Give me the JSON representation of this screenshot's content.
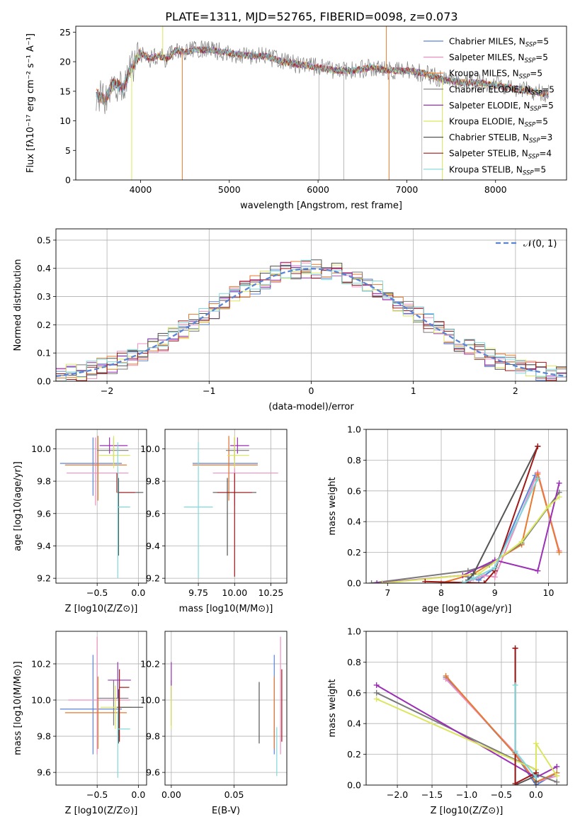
{
  "figure": {
    "title": "PLATE=1311, MJD=52765, FIBERID=0098, z=0.073"
  },
  "colors": {
    "Chabrier MILES": "#5b84d6",
    "Salpeter MILES": "#ec8fc0",
    "Kroupa MILES": "#e87a2e",
    "Chabrier ELODIE": "#7a7a7a",
    "Salpeter ELODIE": "#9b2fb5",
    "Kroupa ELODIE": "#dbe65e",
    "Chabrier STELIB": "#555555",
    "Salpeter STELIB": "#a01818",
    "Kroupa STELIB": "#7fd9db",
    "grid": "#b0b0b0",
    "gauss": "#5b84d6"
  },
  "chart_data": [
    {
      "id": "spectrum",
      "type": "line",
      "xlabel": "wavelength [Angstrom, rest frame]",
      "ylabel": "Flux [fλ10⁻¹⁷ erg cm⁻² s⁻¹ A⁻¹]",
      "xlim": [
        3270,
        8800
      ],
      "ylim": [
        0,
        26
      ],
      "xticks": [
        4000,
        5000,
        6000,
        7000,
        8000
      ],
      "yticks": [
        0,
        5,
        10,
        15,
        20,
        25
      ],
      "grid": false,
      "legend_position": "top-right",
      "continuum": {
        "x": [
          3500,
          3600,
          3700,
          3800,
          3900,
          4000,
          4100,
          4200,
          4300,
          4400,
          4500,
          4600,
          4800,
          5000,
          5200,
          5400,
          5600,
          5800,
          6000,
          6200,
          6400,
          6600,
          6800,
          7000,
          7200,
          7400,
          7600,
          7800,
          8000,
          8200,
          8400,
          8600
        ],
        "y": [
          14.5,
          13.5,
          16.5,
          15.5,
          19.0,
          21.5,
          20.5,
          21.0,
          20.5,
          22.0,
          21.5,
          22.0,
          22.0,
          21.5,
          21.0,
          21.0,
          20.0,
          19.5,
          19.0,
          18.5,
          18.5,
          19.0,
          18.5,
          18.5,
          18.0,
          17.0,
          16.5,
          16.5,
          16.0,
          15.5,
          15.0,
          14.5
        ]
      },
      "spikes": [
        {
          "x": 3900,
          "y": 0
        },
        {
          "x": 4470,
          "y": 0
        },
        {
          "x": 4250,
          "y": 26
        },
        {
          "x": 6800,
          "y": 0
        },
        {
          "x": 7400,
          "y": 0
        },
        {
          "x": 6770,
          "y": 26
        }
      ],
      "legend": [
        {
          "label": "Chabrier MILES, N_SSP=5"
        },
        {
          "label": "Salpeter MILES, N_SSP=5"
        },
        {
          "label": "Kroupa MILES, N_SSP=5"
        },
        {
          "label": "Chabrier ELODIE, N_SSP=5"
        },
        {
          "label": "Salpeter ELODIE, N_SSP=5"
        },
        {
          "label": "Kroupa ELODIE, N_SSP=5"
        },
        {
          "label": "Chabrier STELIB, N_SSP=3"
        },
        {
          "label": "Salpeter STELIB, N_SSP=4"
        },
        {
          "label": "Kroupa STELIB, N_SSP=5"
        }
      ]
    },
    {
      "id": "residuals",
      "type": "area",
      "xlabel": "(data-model)/error",
      "ylabel": "Normed distribution",
      "xlim": [
        -2.5,
        2.5
      ],
      "ylim": [
        0,
        0.54
      ],
      "xticks": [
        -2,
        -1,
        0,
        1,
        2
      ],
      "yticks": [
        0.0,
        0.1,
        0.2,
        0.3,
        0.4,
        0.5
      ],
      "grid": true,
      "bin_width": 0.1,
      "legend": "𝒩(0, 1)",
      "legend_position": "top-right",
      "gaussian": {
        "mean": 0,
        "sigma": 1
      }
    },
    {
      "id": "age_vs_Z",
      "type": "scatter",
      "xlabel": "Z [log10(Z/Z⊙)]",
      "ylabel": "age [log10(age/yr)]",
      "xlim": [
        -1.0,
        0.1
      ],
      "ylim": [
        9.17,
        10.12
      ],
      "xticks": [
        -0.5,
        0.0
      ],
      "yticks": [
        9.2,
        9.4,
        9.6,
        9.8,
        10.0
      ],
      "grid": true,
      "points": [
        {
          "model": "Chabrier MILES",
          "x": -0.55,
          "xerr": [
            0.4,
            0.35
          ],
          "y": 9.91,
          "yerr": [
            0.2,
            0.16
          ]
        },
        {
          "model": "Salpeter MILES",
          "x": -0.52,
          "xerr": [
            0.35,
            0.4
          ],
          "y": 9.85,
          "yerr": [
            0.2,
            0.22
          ]
        },
        {
          "model": "Kroupa MILES",
          "x": -0.49,
          "xerr": [
            0.4,
            0.35
          ],
          "y": 9.9,
          "yerr": [
            0.22,
            0.18
          ]
        },
        {
          "model": "Chabrier ELODIE",
          "x": -0.3,
          "xerr": [
            0.2,
            0.18
          ],
          "y": 9.99,
          "yerr": [
            0.06,
            0.08
          ]
        },
        {
          "model": "Salpeter ELODIE",
          "x": -0.35,
          "xerr": [
            0.12,
            0.22
          ],
          "y": 10.02,
          "yerr": [
            0.05,
            0.05
          ]
        },
        {
          "model": "Kroupa ELODIE",
          "x": -0.3,
          "xerr": [
            0.18,
            0.2
          ],
          "y": 9.96,
          "yerr": [
            0.08,
            0.12
          ]
        },
        {
          "model": "Chabrier STELIB",
          "x": -0.24,
          "xerr": [
            0.02,
            0.3
          ],
          "y": 9.73,
          "yerr": [
            0.39,
            0.09
          ]
        },
        {
          "model": "Salpeter STELIB",
          "x": -0.26,
          "xerr": [
            0.0,
            0.22
          ],
          "y": 9.73,
          "yerr": [
            0.0,
            0.12
          ]
        },
        {
          "model": "Kroupa STELIB",
          "x": -0.25,
          "xerr": [
            0.0,
            0.15
          ],
          "y": 9.64,
          "yerr": [
            0.44,
            0.4
          ]
        }
      ]
    },
    {
      "id": "age_vs_mass",
      "type": "scatter",
      "xlabel": "mass [log10(M/M⊙)]",
      "ylabel": "",
      "xlim": [
        9.52,
        10.36
      ],
      "ylim": [
        9.17,
        10.12
      ],
      "xticks": [
        9.75,
        10.0,
        10.25
      ],
      "yticks": [
        9.2,
        9.4,
        9.6,
        9.8,
        10.0
      ],
      "grid": true,
      "points": [
        {
          "model": "Chabrier MILES",
          "x": 9.96,
          "xerr": [
            0.25,
            0.2
          ],
          "y": 9.91,
          "yerr": [
            0.2,
            0.16
          ]
        },
        {
          "model": "Salpeter MILES",
          "x": 10.0,
          "xerr": [
            0.15,
            0.3
          ],
          "y": 9.85,
          "yerr": [
            0.2,
            0.22
          ]
        },
        {
          "model": "Kroupa MILES",
          "x": 9.96,
          "xerr": [
            0.25,
            0.2
          ],
          "y": 9.9,
          "yerr": [
            0.22,
            0.18
          ]
        },
        {
          "model": "Chabrier ELODIE",
          "x": 10.0,
          "xerr": [
            0.06,
            0.1
          ],
          "y": 9.99,
          "yerr": [
            0.06,
            0.08
          ]
        },
        {
          "model": "Salpeter ELODIE",
          "x": 10.02,
          "xerr": [
            0.05,
            0.08
          ],
          "y": 10.02,
          "yerr": [
            0.05,
            0.05
          ]
        },
        {
          "model": "Kroupa ELODIE",
          "x": 10.0,
          "xerr": [
            0.05,
            0.1
          ],
          "y": 9.96,
          "yerr": [
            0.08,
            0.12
          ]
        },
        {
          "model": "Chabrier STELIB",
          "x": 9.95,
          "xerr": [
            0.1,
            0.2
          ],
          "y": 9.73,
          "yerr": [
            0.39,
            0.09
          ]
        },
        {
          "model": "Salpeter STELIB",
          "x": 10.0,
          "xerr": [
            0.12,
            0.12
          ],
          "y": 9.73,
          "yerr": [
            0.52,
            0.12
          ]
        },
        {
          "model": "Kroupa STELIB",
          "x": 9.75,
          "xerr": [
            0.1,
            0.1
          ],
          "y": 9.64,
          "yerr": [
            0.44,
            0.4
          ]
        }
      ]
    },
    {
      "id": "weight_vs_age",
      "type": "line",
      "xlabel": "age [log10(age/yr)]",
      "ylabel": "mass weight",
      "xlim": [
        6.6,
        10.35
      ],
      "ylim": [
        0.0,
        1.0
      ],
      "xticks": [
        7,
        8,
        9,
        10
      ],
      "yticks": [
        0.0,
        0.2,
        0.4,
        0.6,
        0.8,
        1.0
      ],
      "grid": true,
      "series": [
        {
          "model": "Chabrier MILES",
          "x": [
            8.5,
            8.7,
            9.0,
            9.75,
            9.8
          ],
          "y": [
            0.04,
            0.02,
            0.1,
            0.7,
            0.68
          ]
        },
        {
          "model": "Salpeter MILES",
          "x": [
            8.5,
            8.8,
            9.0,
            9.8,
            10.2
          ],
          "y": [
            0.01,
            0.05,
            0.04,
            0.72,
            0.21
          ]
        },
        {
          "model": "Kroupa MILES",
          "x": [
            8.0,
            8.6,
            9.5,
            9.8,
            10.2
          ],
          "y": [
            0.0,
            0.06,
            0.25,
            0.71,
            0.2
          ]
        },
        {
          "model": "Chabrier ELODIE",
          "x": [
            6.7,
            8.5,
            8.9,
            9.5,
            10.2
          ],
          "y": [
            0.0,
            0.08,
            0.12,
            0.26,
            0.59
          ]
        },
        {
          "model": "Salpeter ELODIE",
          "x": [
            6.8,
            8.4,
            9.0,
            9.8,
            10.2
          ],
          "y": [
            0.0,
            0.05,
            0.15,
            0.08,
            0.65
          ]
        },
        {
          "model": "Kroupa ELODIE",
          "x": [
            6.9,
            8.7,
            9.5,
            10.0,
            10.2
          ],
          "y": [
            0.0,
            0.06,
            0.27,
            0.5,
            0.56
          ]
        },
        {
          "model": "Chabrier STELIB",
          "x": [
            8.5,
            8.6,
            9.8
          ],
          "y": [
            0.02,
            0.06,
            0.89
          ]
        },
        {
          "model": "Salpeter STELIB",
          "x": [
            7.7,
            8.8,
            9.0,
            9.8
          ],
          "y": [
            0.01,
            0.0,
            0.08,
            0.89
          ]
        },
        {
          "model": "Kroupa STELIB",
          "x": [
            8.4,
            8.6,
            9.0,
            9.8
          ],
          "y": [
            0.0,
            0.03,
            0.1,
            0.68
          ]
        }
      ]
    },
    {
      "id": "mass_vs_Z",
      "type": "scatter",
      "xlabel": "Z [log10(Z/Z⊙)]",
      "ylabel": "mass [log10(M/M⊙)]",
      "xlim": [
        -1.0,
        0.1
      ],
      "ylim": [
        9.53,
        10.38
      ],
      "xticks": [
        -0.5,
        0.0
      ],
      "yticks": [
        9.6,
        9.8,
        10.0,
        10.2
      ],
      "grid": true,
      "points": [
        {
          "model": "Chabrier MILES",
          "x": -0.55,
          "xerr": [
            0.4,
            0.35
          ],
          "y": 9.95,
          "yerr": [
            0.25,
            0.3
          ]
        },
        {
          "model": "Salpeter MILES",
          "x": -0.5,
          "xerr": [
            0.35,
            0.4
          ],
          "y": 10.0,
          "yerr": [
            0.3,
            0.35
          ]
        },
        {
          "model": "Kroupa MILES",
          "x": -0.49,
          "xerr": [
            0.4,
            0.35
          ],
          "y": 9.93,
          "yerr": [
            0.2,
            0.2
          ]
        },
        {
          "model": "Chabrier ELODIE",
          "x": -0.3,
          "xerr": [
            0.2,
            0.18
          ],
          "y": 10.01,
          "yerr": [
            0.15,
            0.1
          ]
        },
        {
          "model": "Salpeter ELODIE",
          "x": -0.25,
          "xerr": [
            0.12,
            0.16
          ],
          "y": 10.11,
          "yerr": [
            0.1,
            0.1
          ]
        },
        {
          "model": "Kroupa ELODIE",
          "x": -0.28,
          "xerr": [
            0.18,
            0.2
          ],
          "y": 9.96,
          "yerr": [
            0.12,
            0.12
          ]
        },
        {
          "model": "Chabrier STELIB",
          "x": -0.24,
          "xerr": [
            0.02,
            0.3
          ],
          "y": 9.96,
          "yerr": [
            0.2,
            0.1
          ]
        },
        {
          "model": "Salpeter STELIB",
          "x": -0.23,
          "xerr": [
            0.0,
            0.12
          ],
          "y": 10.07,
          "yerr": [
            0.3,
            0.1
          ]
        },
        {
          "model": "Kroupa STELIB",
          "x": -0.25,
          "xerr": [
            0.0,
            0.15
          ],
          "y": 9.84,
          "yerr": [
            0.27,
            0.1
          ]
        }
      ]
    },
    {
      "id": "mass_vs_EBV",
      "type": "scatter",
      "xlabel": "E(B-V)",
      "ylabel": "",
      "xlim": [
        -0.005,
        0.092
      ],
      "ylim": [
        9.53,
        10.38
      ],
      "xticks": [
        0.0,
        0.05
      ],
      "yticks": [
        9.6,
        9.8,
        10.0,
        10.2
      ],
      "grid": true,
      "points": [
        {
          "model": "Chabrier MILES",
          "x": 0.082,
          "xerr": [
            0,
            0
          ],
          "y": 9.95,
          "yerr": [
            0.25,
            0.3
          ]
        },
        {
          "model": "Salpeter MILES",
          "x": 0.087,
          "xerr": [
            0,
            0
          ],
          "y": 10.0,
          "yerr": [
            0.3,
            0.35
          ]
        },
        {
          "model": "Kroupa MILES",
          "x": 0.082,
          "xerr": [
            0,
            0
          ],
          "y": 9.93,
          "yerr": [
            0.2,
            0.2
          ]
        },
        {
          "model": "Chabrier ELODIE",
          "x": 0.0,
          "xerr": [
            0,
            0
          ],
          "y": 10.01,
          "yerr": [
            0.15,
            0.1
          ]
        },
        {
          "model": "Salpeter ELODIE",
          "x": 0.0,
          "xerr": [
            0,
            0
          ],
          "y": 10.11,
          "yerr": [
            0.1,
            0.1
          ]
        },
        {
          "model": "Kroupa ELODIE",
          "x": 0.0,
          "xerr": [
            0,
            0
          ],
          "y": 9.96,
          "yerr": [
            0.12,
            0.12
          ]
        },
        {
          "model": "Chabrier STELIB",
          "x": 0.07,
          "xerr": [
            0,
            0
          ],
          "y": 9.93,
          "yerr": [
            0.17,
            0.17
          ]
        },
        {
          "model": "Salpeter STELIB",
          "x": 0.088,
          "xerr": [
            0,
            0
          ],
          "y": 9.97,
          "yerr": [
            0.2,
            0.2
          ]
        },
        {
          "model": "Kroupa STELIB",
          "x": 0.084,
          "xerr": [
            0,
            0
          ],
          "y": 9.75,
          "yerr": [
            0.17,
            0.1
          ]
        }
      ]
    },
    {
      "id": "weight_vs_Z",
      "type": "line",
      "xlabel": "Z [log10(Z/Z⊙)]",
      "ylabel": "mass weight",
      "xlim": [
        -2.45,
        0.45
      ],
      "ylim": [
        0.0,
        1.0
      ],
      "xticks": [
        -2.0,
        -1.5,
        -1.0,
        -0.5,
        0.0
      ],
      "yticks": [
        0.0,
        0.2,
        0.4,
        0.6,
        0.8,
        1.0
      ],
      "grid": true,
      "series": [
        {
          "model": "Chabrier MILES",
          "x": [
            -1.3,
            -0.3,
            0.0,
            0.3
          ],
          "y": [
            0.7,
            0.2,
            0.0,
            0.08
          ]
        },
        {
          "model": "Salpeter MILES",
          "x": [
            -1.3,
            -0.3,
            0.0,
            0.3
          ],
          "y": [
            0.69,
            0.21,
            0.02,
            0.06
          ]
        },
        {
          "model": "Kroupa MILES",
          "x": [
            -1.3,
            -0.3,
            0.0,
            0.3
          ],
          "y": [
            0.71,
            0.2,
            0.02,
            0.08
          ]
        },
        {
          "model": "Chabrier ELODIE",
          "x": [
            -2.3,
            0.0,
            0.0,
            0.3
          ],
          "y": [
            0.6,
            0.1,
            0.07,
            0.02
          ]
        },
        {
          "model": "Salpeter ELODIE",
          "x": [
            -2.3,
            0.0,
            0.3
          ],
          "y": [
            0.65,
            0.05,
            0.12
          ]
        },
        {
          "model": "Kroupa ELODIE",
          "x": [
            -2.3,
            0.0,
            0.0,
            0.3
          ],
          "y": [
            0.56,
            0.1,
            0.27,
            0.06
          ]
        },
        {
          "model": "Chabrier STELIB",
          "x": [
            -0.3,
            -0.3,
            0.0,
            0.0
          ],
          "y": [
            0.89,
            0.0,
            0.06,
            0.02
          ]
        },
        {
          "model": "Salpeter STELIB",
          "x": [
            -0.3,
            -0.3,
            0.0
          ],
          "y": [
            0.89,
            0.01,
            0.08
          ]
        },
        {
          "model": "Kroupa STELIB",
          "x": [
            -0.3,
            -0.3,
            0.0
          ],
          "y": [
            0.65,
            0.22,
            0.05
          ]
        }
      ]
    }
  ]
}
